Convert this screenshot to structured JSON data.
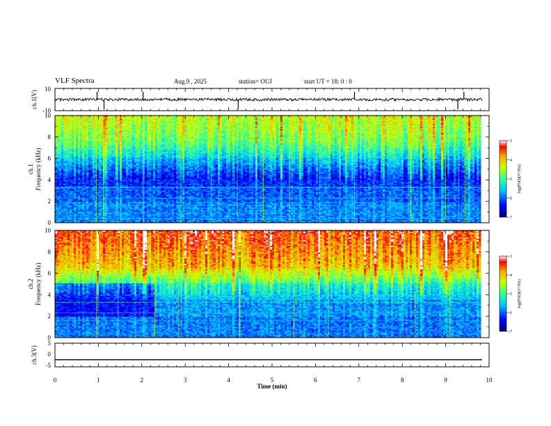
{
  "header": {
    "title": "VLF Spectra",
    "date": "Aug.9 , 2025",
    "station": "station= OUJ",
    "start": "start UT = 18: 0 : 0"
  },
  "chart_data": [
    {
      "type": "line",
      "name": "ch1-waveform",
      "ylabel": "ch.1(V)",
      "ylim": [
        -10,
        10
      ],
      "yticks": [
        "10",
        "-10"
      ],
      "baseline": 0,
      "spike_times_min": [
        0.97,
        1.13,
        2.03,
        4.22,
        6.9,
        9.28,
        9.42
      ]
    },
    {
      "type": "heatmap",
      "name": "ch1-spectrogram",
      "ylabel": "ch.1\nFrequency (kHz)",
      "ylim": [
        0,
        10
      ],
      "yticks": [
        "0",
        "2",
        "4",
        "6",
        "8",
        "10"
      ],
      "xlim": [
        0,
        9.84
      ],
      "colorbar": {
        "label": "log(PSD)(V²/Hz)",
        "ticks": [
          "-3",
          "-4",
          "-5",
          "-6",
          "-7"
        ],
        "range": [
          -7,
          -3
        ]
      }
    },
    {
      "type": "heatmap",
      "name": "ch2-spectrogram",
      "ylabel": "ch.2\nFrequency (kHz)",
      "ylim": [
        0,
        10
      ],
      "yticks": [
        "0",
        "2",
        "4",
        "6",
        "8",
        "10"
      ],
      "xlim": [
        0,
        9.84
      ],
      "colorbar": {
        "label": "log(PSD)(V²/Hz)",
        "ticks": [
          "-3",
          "-4",
          "-5",
          "-6",
          "-7"
        ],
        "range": [
          -7,
          -3
        ]
      }
    },
    {
      "type": "line",
      "name": "ch3-waveform",
      "ylabel": "ch.3(V)",
      "ylim": [
        -5,
        5
      ],
      "yticks": [
        "5",
        "0",
        "-5"
      ],
      "baseline": -2
    }
  ],
  "xaxis": {
    "label": "Time (min)",
    "range": [
      0,
      10
    ],
    "ticks": [
      "0",
      "1",
      "2",
      "3",
      "4",
      "5",
      "6",
      "7",
      "8",
      "9",
      "10"
    ]
  }
}
